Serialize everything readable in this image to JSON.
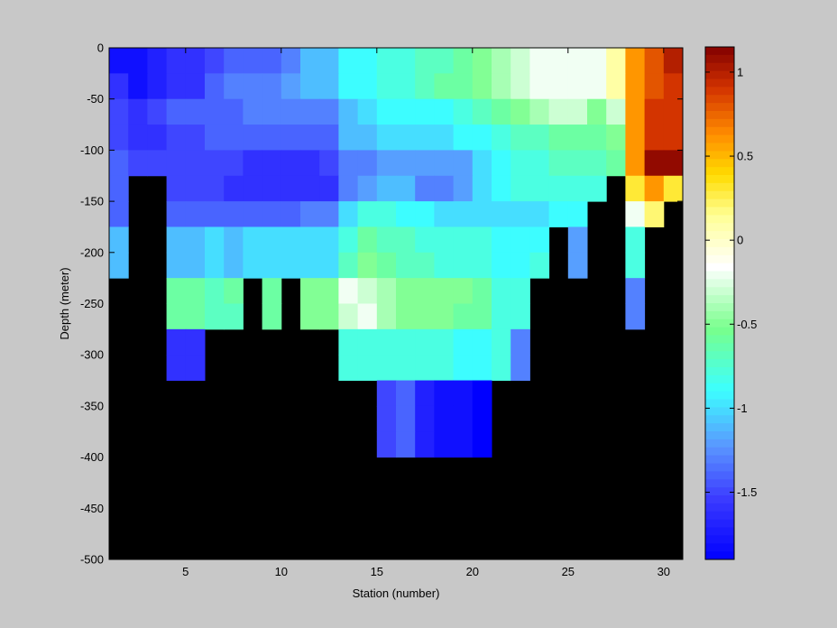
{
  "chart_data": {
    "type": "heatmap",
    "xlabel": "Station (number)",
    "ylabel": "Depth (meter)",
    "xlim": [
      1,
      31
    ],
    "ylim": [
      -500,
      0
    ],
    "xticks": [
      5,
      10,
      15,
      20,
      25,
      30
    ],
    "yticks": [
      0,
      -50,
      -100,
      -150,
      -200,
      -250,
      -300,
      -350,
      -400,
      -450,
      -500
    ],
    "depth_rows": [
      0,
      -25,
      -50,
      -75,
      -100,
      -125,
      -150,
      -175,
      -200,
      -225,
      -250,
      -275,
      -300,
      -325,
      -350,
      -375,
      -400,
      -425,
      -450,
      -475
    ],
    "stations": [
      1,
      2,
      3,
      4,
      5,
      6,
      7,
      8,
      9,
      10,
      11,
      12,
      13,
      14,
      15,
      16,
      17,
      18,
      19,
      20,
      21,
      22,
      23,
      24,
      25,
      26,
      27,
      28,
      29,
      30
    ],
    "colorbar": {
      "limits": [
        -1.9,
        1.15
      ],
      "ticks": [
        1,
        0.5,
        0,
        -0.5,
        -1,
        -1.5
      ],
      "colormap": "jet-white-center",
      "no_data_color": "#000000"
    },
    "values": [
      [
        -1.8,
        -1.8,
        -1.7,
        -1.6,
        -1.6,
        -1.5,
        -1.4,
        -1.4,
        -1.4,
        -1.3,
        -1.1,
        -1.1,
        -0.9,
        -0.9,
        -0.8,
        -0.8,
        -0.7,
        -0.7,
        -0.6,
        -0.5,
        -0.4,
        -0.3,
        -0.2,
        -0.2,
        -0.2,
        -0.2,
        0.1,
        0.6,
        0.8,
        1.0
      ],
      [
        -1.6,
        -1.8,
        -1.7,
        -1.6,
        -1.6,
        -1.4,
        -1.3,
        -1.3,
        -1.3,
        -1.2,
        -1.1,
        -1.1,
        -0.9,
        -0.9,
        -0.8,
        -0.8,
        -0.7,
        -0.6,
        -0.6,
        -0.5,
        -0.4,
        -0.3,
        -0.2,
        -0.2,
        -0.2,
        -0.2,
        0.1,
        0.6,
        0.8,
        0.9
      ],
      [
        -1.5,
        -1.6,
        -1.5,
        -1.4,
        -1.4,
        -1.4,
        -1.4,
        -1.3,
        -1.3,
        -1.3,
        -1.3,
        -1.3,
        -1.1,
        -1.0,
        -0.9,
        -0.9,
        -0.9,
        -0.9,
        -0.8,
        -0.7,
        -0.6,
        -0.5,
        -0.4,
        -0.3,
        -0.3,
        -0.5,
        -0.3,
        0.6,
        0.9,
        0.9
      ],
      [
        -1.5,
        -1.6,
        -1.6,
        -1.5,
        -1.5,
        -1.4,
        -1.4,
        -1.4,
        -1.4,
        -1.4,
        -1.4,
        -1.4,
        -1.1,
        -1.1,
        -1.0,
        -1.0,
        -1.0,
        -1.0,
        -0.9,
        -0.9,
        -0.8,
        -0.7,
        -0.7,
        -0.6,
        -0.6,
        -0.6,
        -0.5,
        0.6,
        0.9,
        0.9
      ],
      [
        -1.4,
        -1.5,
        -1.5,
        -1.5,
        -1.5,
        -1.5,
        -1.5,
        -1.6,
        -1.6,
        -1.6,
        -1.6,
        -1.5,
        -1.3,
        -1.3,
        -1.2,
        -1.2,
        -1.2,
        -1.2,
        -1.2,
        -1.0,
        -0.9,
        -0.8,
        -0.8,
        -0.7,
        -0.7,
        -0.7,
        -0.6,
        0.6,
        1.1,
        1.1
      ],
      [
        -1.4,
        null,
        null,
        -1.5,
        -1.5,
        -1.5,
        -1.6,
        -1.6,
        -1.6,
        -1.6,
        -1.6,
        -1.6,
        -1.3,
        -1.2,
        -1.1,
        -1.1,
        -1.3,
        -1.3,
        -1.2,
        -1.0,
        -0.9,
        -0.8,
        -0.8,
        -0.8,
        -0.8,
        -0.8,
        null,
        0.3,
        0.6,
        0.3
      ],
      [
        -1.4,
        null,
        null,
        -1.4,
        -1.4,
        -1.4,
        -1.4,
        -1.4,
        -1.4,
        -1.4,
        -1.3,
        -1.3,
        -1.0,
        -0.8,
        -0.8,
        -0.9,
        -0.9,
        -1.0,
        -1.0,
        -1.0,
        -1.0,
        -1.0,
        -1.0,
        -0.9,
        -0.9,
        null,
        null,
        -0.2,
        0.2,
        null
      ],
      [
        -1.1,
        null,
        null,
        -1.1,
        -1.1,
        -1.0,
        -1.1,
        -1.0,
        -1.0,
        -1.0,
        -1.0,
        -1.0,
        -0.8,
        -0.6,
        -0.7,
        -0.7,
        -0.8,
        -0.8,
        -0.8,
        -0.8,
        -0.9,
        -0.9,
        -0.9,
        null,
        -1.2,
        null,
        null,
        -0.8,
        null,
        null
      ],
      [
        -1.1,
        null,
        null,
        -1.1,
        -1.1,
        -1.0,
        -1.1,
        -1.0,
        -1.0,
        -1.0,
        -1.0,
        -1.0,
        -0.7,
        -0.5,
        -0.6,
        -0.7,
        -0.7,
        -0.8,
        -0.8,
        -0.8,
        -0.9,
        -0.9,
        -0.8,
        null,
        -1.2,
        null,
        null,
        -0.8,
        null,
        null
      ],
      [
        null,
        null,
        null,
        -0.6,
        -0.6,
        -0.7,
        -0.6,
        null,
        -0.6,
        null,
        -0.5,
        -0.5,
        -0.2,
        -0.3,
        -0.4,
        -0.5,
        -0.5,
        -0.5,
        -0.5,
        -0.6,
        -0.8,
        -0.8,
        null,
        null,
        null,
        null,
        null,
        -1.3,
        null,
        null
      ],
      [
        null,
        null,
        null,
        -0.6,
        -0.6,
        -0.7,
        -0.7,
        null,
        -0.6,
        null,
        -0.5,
        -0.5,
        -0.3,
        -0.2,
        -0.4,
        -0.5,
        -0.5,
        -0.5,
        -0.6,
        -0.6,
        -0.8,
        -0.8,
        null,
        null,
        null,
        null,
        null,
        -1.3,
        null,
        null
      ],
      [
        null,
        null,
        null,
        -1.6,
        -1.6,
        null,
        null,
        null,
        null,
        null,
        null,
        null,
        -0.8,
        -0.8,
        -0.8,
        -0.8,
        -0.8,
        -0.8,
        -0.9,
        -0.9,
        -0.8,
        -1.3,
        null,
        null,
        null,
        null,
        null,
        null,
        null,
        null
      ],
      [
        null,
        null,
        null,
        -1.6,
        -1.6,
        null,
        null,
        null,
        null,
        null,
        null,
        null,
        -0.8,
        -0.8,
        -0.8,
        -0.8,
        -0.8,
        -0.8,
        -0.9,
        -0.9,
        -0.8,
        -1.3,
        null,
        null,
        null,
        null,
        null,
        null,
        null,
        null
      ],
      [
        null,
        null,
        null,
        null,
        null,
        null,
        null,
        null,
        null,
        null,
        null,
        null,
        null,
        null,
        -1.5,
        -1.4,
        -1.7,
        -1.8,
        -1.8,
        -1.9,
        null,
        null,
        null,
        null,
        null,
        null,
        null,
        null,
        null,
        null
      ],
      [
        null,
        null,
        null,
        null,
        null,
        null,
        null,
        null,
        null,
        null,
        null,
        null,
        null,
        null,
        -1.5,
        -1.4,
        -1.7,
        -1.8,
        -1.8,
        -1.9,
        null,
        null,
        null,
        null,
        null,
        null,
        null,
        null,
        null,
        null
      ],
      [
        null,
        null,
        null,
        null,
        null,
        null,
        null,
        null,
        null,
        null,
        null,
        null,
        null,
        null,
        -1.5,
        -1.4,
        -1.7,
        -1.8,
        -1.8,
        -1.9,
        null,
        null,
        null,
        null,
        null,
        null,
        null,
        null,
        null,
        null
      ],
      [
        null,
        null,
        null,
        null,
        null,
        null,
        null,
        null,
        null,
        null,
        null,
        null,
        null,
        null,
        null,
        null,
        null,
        null,
        null,
        null,
        null,
        null,
        null,
        null,
        null,
        null,
        null,
        null,
        null,
        null
      ],
      [
        null,
        null,
        null,
        null,
        null,
        null,
        null,
        null,
        null,
        null,
        null,
        null,
        null,
        null,
        null,
        null,
        null,
        null,
        null,
        null,
        null,
        null,
        null,
        null,
        null,
        null,
        null,
        null,
        null,
        null
      ],
      [
        null,
        null,
        null,
        null,
        null,
        null,
        null,
        null,
        null,
        null,
        null,
        null,
        null,
        null,
        null,
        null,
        null,
        null,
        null,
        null,
        null,
        null,
        null,
        null,
        null,
        null,
        null,
        null,
        null,
        null
      ],
      [
        null,
        null,
        null,
        null,
        null,
        null,
        null,
        null,
        null,
        null,
        null,
        null,
        null,
        null,
        null,
        null,
        null,
        null,
        null,
        null,
        null,
        null,
        null,
        null,
        null,
        null,
        null,
        null,
        null,
        null
      ]
    ]
  }
}
